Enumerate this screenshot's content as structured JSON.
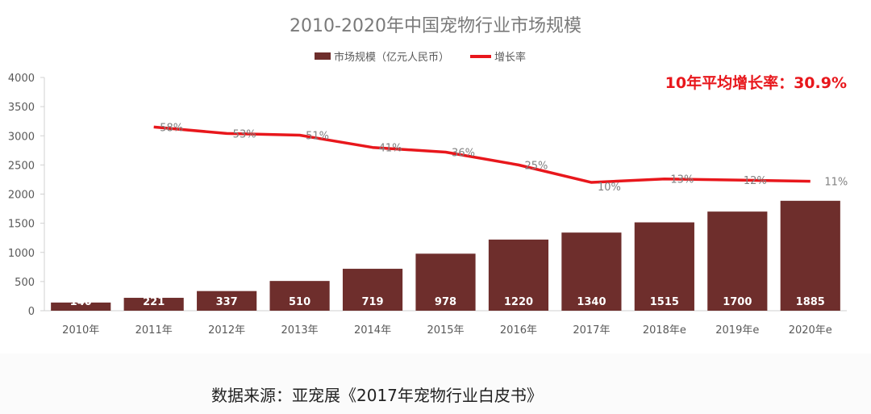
{
  "chart_data": {
    "type": "bar",
    "title": "2010-2020年中国宠物行业市场规模",
    "categories": [
      "2010年",
      "2011年",
      "2012年",
      "2013年",
      "2014年",
      "2015年",
      "2016年",
      "2017年",
      "2018年e",
      "2019年e",
      "2020年e"
    ],
    "series": [
      {
        "name": "市场规模（亿元人民币）",
        "type": "bar",
        "color": "#6e2e2c",
        "values": [
          140,
          221,
          337,
          510,
          719,
          978,
          1220,
          1340,
          1515,
          1700,
          1885
        ],
        "labels": [
          "140",
          "221",
          "337",
          "510",
          "719",
          "978",
          "1220",
          "1340",
          "1515",
          "1700",
          "1885"
        ]
      },
      {
        "name": "增长率",
        "type": "line",
        "color": "#e8171c",
        "values": [
          null,
          58,
          53,
          51,
          41,
          36,
          25,
          10,
          13,
          12,
          11
        ],
        "labels": [
          "",
          "58%",
          "53%",
          "51%",
          "41%",
          "36%",
          "25%",
          "10%",
          "13%",
          "12%",
          "11%"
        ],
        "plotted_y": [
          null,
          3150,
          3040,
          3010,
          2800,
          2720,
          2500,
          2200,
          2260,
          2240,
          2220
        ]
      }
    ],
    "yticks": [
      "0",
      "500",
      "1000",
      "1500",
      "2000",
      "2500",
      "3000",
      "3500",
      "4000"
    ],
    "ylim": [
      0,
      4000
    ],
    "legend_position": "top-center",
    "annotation": "10年平均增长率：30.9%"
  },
  "footer": {
    "source": "数据来源：亚宠展《2017年宠物行业白皮书》"
  }
}
